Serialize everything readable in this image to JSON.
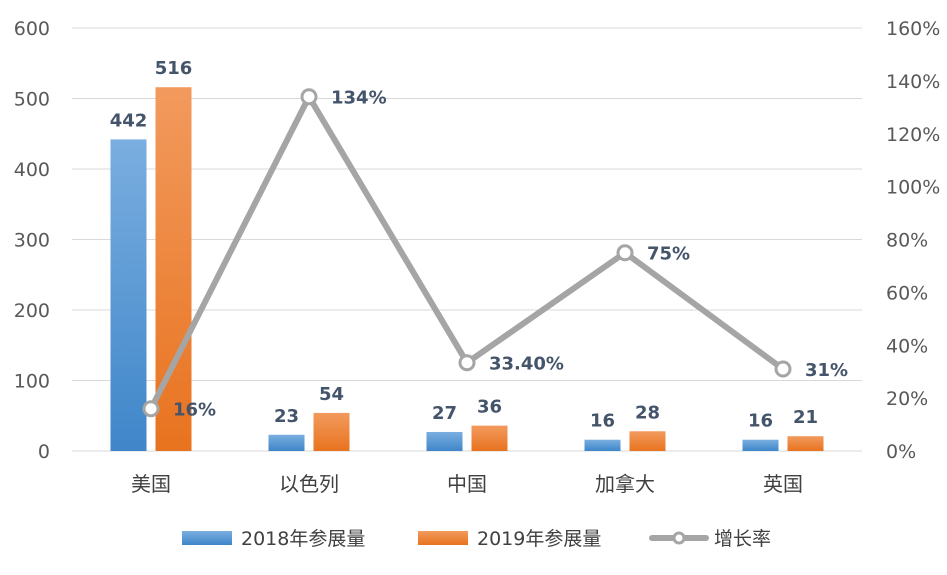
{
  "chart_data": {
    "type": "bar+line",
    "categories": [
      "美国",
      "以色列",
      "中国",
      "加拿大",
      "英国"
    ],
    "series": [
      {
        "name": "2018年参展量",
        "type": "bar",
        "axis": "left",
        "values": [
          442,
          23,
          27,
          16,
          16
        ],
        "labels": [
          "442",
          "23",
          "27",
          "16",
          "16"
        ],
        "color": "#5b9bd5"
      },
      {
        "name": "2019年参展量",
        "type": "bar",
        "axis": "left",
        "values": [
          516,
          54,
          36,
          28,
          21
        ],
        "labels": [
          "516",
          "54",
          "36",
          "28",
          "21"
        ],
        "color": "#ed7d31"
      },
      {
        "name": "增长率",
        "type": "line",
        "axis": "right",
        "values": [
          16,
          134,
          33.4,
          75,
          31
        ],
        "labels": [
          "16%",
          "134%",
          "33.40%",
          "75%",
          "31%"
        ],
        "color": "#a5a5a5"
      }
    ],
    "left_axis": {
      "min": 0,
      "max": 600,
      "step": 100,
      "ticks": [
        "0",
        "100",
        "200",
        "300",
        "400",
        "500",
        "600"
      ]
    },
    "right_axis": {
      "min": 0,
      "max": 160,
      "step": 20,
      "ticks": [
        "0%",
        "20%",
        "40%",
        "60%",
        "80%",
        "100%",
        "120%",
        "140%",
        "160%"
      ]
    },
    "grid": true,
    "legend_position": "bottom"
  }
}
